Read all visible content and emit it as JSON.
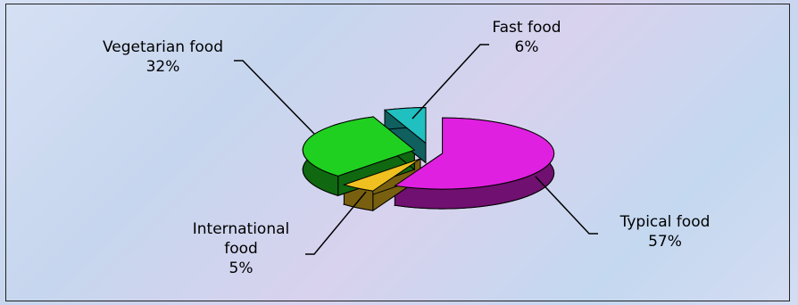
{
  "chart_data": {
    "type": "pie",
    "categories": [
      "Typical food",
      "International food",
      "Vegetarian food",
      "Fast food"
    ],
    "values": [
      57,
      5,
      32,
      6
    ],
    "value_labels": [
      "57%",
      "5%",
      "32%",
      "6%"
    ],
    "colors": [
      "#e020e0",
      "#f0c020",
      "#20d020",
      "#20c0c0"
    ]
  }
}
